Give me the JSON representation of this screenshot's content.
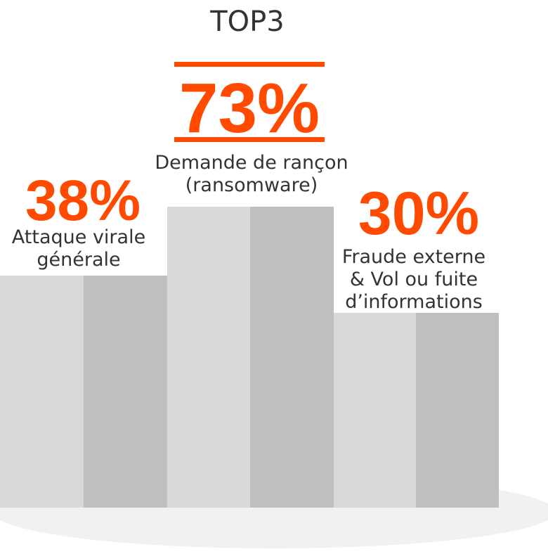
{
  "title": "TOP3",
  "items": [
    {
      "value": "38%",
      "label": [
        "Attaque virale",
        "générale"
      ]
    },
    {
      "value": "73%",
      "label": [
        "Demande de rançon",
        "(ransomware)"
      ]
    },
    {
      "value": "30%",
      "label": [
        "Fraude externe",
        "& Vol ou fuite",
        "d’informations"
      ]
    }
  ]
}
